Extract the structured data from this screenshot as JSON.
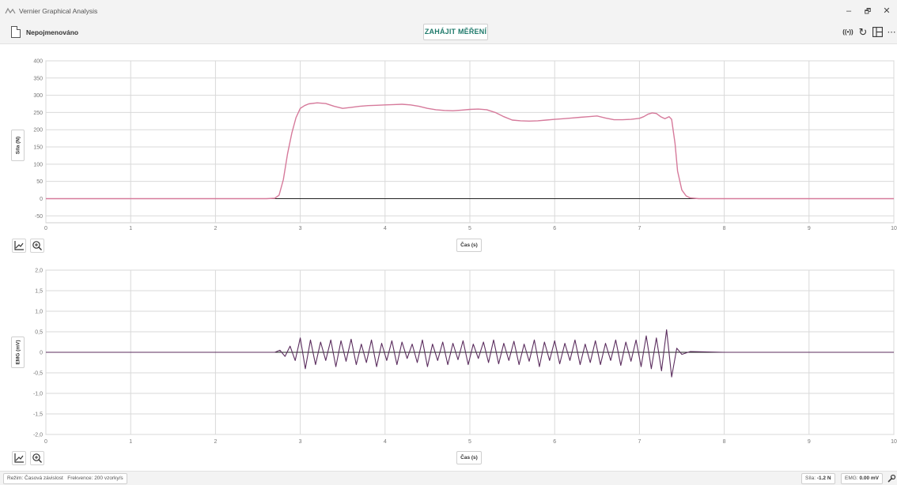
{
  "window": {
    "title": "Vernier Graphical Analysis",
    "minimize": "–",
    "maximize": "🗗",
    "close": "✕"
  },
  "toolbar": {
    "doc_name": "Nepojmenováno",
    "start_label": "ZAHÁJIT MĚŘENÍ",
    "sensor_icon": "((•))",
    "reset_icon": "↻",
    "more_icon": "⋯"
  },
  "colors": {
    "force_series": "#d67a9b",
    "emg_series": "#5b2d5e",
    "zero_line": "#222222",
    "grid": "#d9d9d9",
    "accent": "#1f7a6b"
  },
  "chart_data": [
    {
      "type": "line",
      "ylabel": "Síla (N)",
      "xlabel": "Čas (s)",
      "xlim": [
        0,
        10
      ],
      "ylim": [
        -70,
        400
      ],
      "x_ticks": [
        "0",
        "1",
        "2",
        "3",
        "4",
        "5",
        "6",
        "7",
        "8",
        "9",
        "10"
      ],
      "y_ticks": [
        "400",
        "350",
        "300",
        "250",
        "200",
        "150",
        "100",
        "50",
        "0",
        "-50"
      ],
      "y_tick_values": [
        400,
        350,
        300,
        250,
        200,
        150,
        100,
        50,
        0,
        -50
      ],
      "series": [
        {
          "x": [
            0,
            2.6,
            2.7,
            2.75,
            2.8,
            2.85,
            2.9,
            2.95,
            3.0,
            3.05,
            3.1,
            3.2,
            3.3,
            3.4,
            3.5,
            3.6,
            3.7,
            3.8,
            3.9,
            4.0,
            4.1,
            4.2,
            4.3,
            4.4,
            4.5,
            4.6,
            4.7,
            4.8,
            4.9,
            5.0,
            5.1,
            5.2,
            5.3,
            5.4,
            5.5,
            5.6,
            5.7,
            5.8,
            5.9,
            6.0,
            6.1,
            6.2,
            6.3,
            6.4,
            6.5,
            6.6,
            6.7,
            6.8,
            6.9,
            7.0,
            7.05,
            7.1,
            7.15,
            7.2,
            7.25,
            7.3,
            7.35,
            7.38,
            7.42,
            7.45,
            7.5,
            7.55,
            7.6,
            7.7,
            7.8,
            8.0,
            10.0
          ],
          "y": [
            0,
            0,
            1,
            10,
            55,
            130,
            190,
            235,
            262,
            270,
            275,
            278,
            276,
            268,
            262,
            265,
            268,
            270,
            271,
            272,
            273,
            274,
            272,
            268,
            262,
            258,
            256,
            255,
            257,
            259,
            260,
            258,
            250,
            238,
            228,
            226,
            225,
            226,
            228,
            230,
            232,
            234,
            236,
            238,
            240,
            234,
            229,
            229,
            230,
            233,
            238,
            245,
            249,
            247,
            238,
            232,
            238,
            230,
            160,
            80,
            25,
            8,
            2,
            0,
            0,
            0,
            0
          ]
        }
      ]
    },
    {
      "type": "line",
      "ylabel": "EMG (mV)",
      "xlabel": "Čas (s)",
      "xlim": [
        0,
        10
      ],
      "ylim": [
        -2.0,
        2.0
      ],
      "x_ticks": [
        "0",
        "1",
        "2",
        "3",
        "4",
        "5",
        "6",
        "7",
        "8",
        "9",
        "10"
      ],
      "y_ticks": [
        "2,0",
        "1,5",
        "1,0",
        "0,5",
        "0",
        "-0,5",
        "-1,0",
        "-1,5",
        "-2,0"
      ],
      "y_tick_values": [
        2.0,
        1.5,
        1.0,
        0.5,
        0,
        -0.5,
        -1.0,
        -1.5,
        -2.0
      ],
      "series": [
        {
          "x": [
            0,
            2.7,
            2.76,
            2.82,
            2.88,
            2.94,
            3.0,
            3.06,
            3.12,
            3.18,
            3.24,
            3.3,
            3.36,
            3.42,
            3.48,
            3.54,
            3.6,
            3.66,
            3.72,
            3.78,
            3.84,
            3.9,
            3.96,
            4.02,
            4.08,
            4.14,
            4.2,
            4.26,
            4.32,
            4.38,
            4.44,
            4.5,
            4.56,
            4.62,
            4.68,
            4.74,
            4.8,
            4.86,
            4.92,
            4.98,
            5.04,
            5.1,
            5.16,
            5.22,
            5.28,
            5.34,
            5.4,
            5.46,
            5.52,
            5.58,
            5.64,
            5.7,
            5.76,
            5.82,
            5.88,
            5.94,
            6.0,
            6.06,
            6.12,
            6.18,
            6.24,
            6.3,
            6.36,
            6.42,
            6.48,
            6.54,
            6.6,
            6.66,
            6.72,
            6.78,
            6.84,
            6.9,
            6.96,
            7.02,
            7.08,
            7.14,
            7.2,
            7.26,
            7.32,
            7.38,
            7.44,
            7.5,
            7.6,
            8.0,
            10.0
          ],
          "y": [
            0,
            0,
            0.05,
            -0.1,
            0.15,
            -0.2,
            0.35,
            -0.4,
            0.3,
            -0.3,
            0.25,
            -0.2,
            0.3,
            -0.35,
            0.28,
            -0.22,
            0.32,
            -0.3,
            0.2,
            -0.25,
            0.3,
            -0.35,
            0.22,
            -0.2,
            0.28,
            -0.3,
            0.25,
            -0.15,
            0.2,
            -0.25,
            0.3,
            -0.35,
            0.2,
            -0.2,
            0.25,
            -0.3,
            0.22,
            -0.18,
            0.28,
            -0.3,
            0.2,
            -0.15,
            0.25,
            -0.25,
            0.3,
            -0.28,
            0.22,
            -0.2,
            0.27,
            -0.3,
            0.2,
            -0.22,
            0.3,
            -0.35,
            0.25,
            -0.2,
            0.28,
            -0.28,
            0.22,
            -0.2,
            0.3,
            -0.3,
            0.2,
            -0.25,
            0.28,
            -0.3,
            0.22,
            -0.2,
            0.3,
            -0.32,
            0.25,
            -0.22,
            0.3,
            -0.35,
            0.4,
            -0.4,
            0.35,
            -0.45,
            0.55,
            -0.6,
            0.1,
            -0.05,
            0.02,
            0,
            0
          ]
        }
      ]
    }
  ],
  "status": {
    "mode": "Režim: Časová závislost",
    "frequency": "Frekvence: 200 vzorky/s",
    "force_readout_label": "Síla:",
    "force_readout_value": "-1.2 N",
    "emg_readout_label": "EMG:",
    "emg_readout_value": "0.00 mV"
  }
}
